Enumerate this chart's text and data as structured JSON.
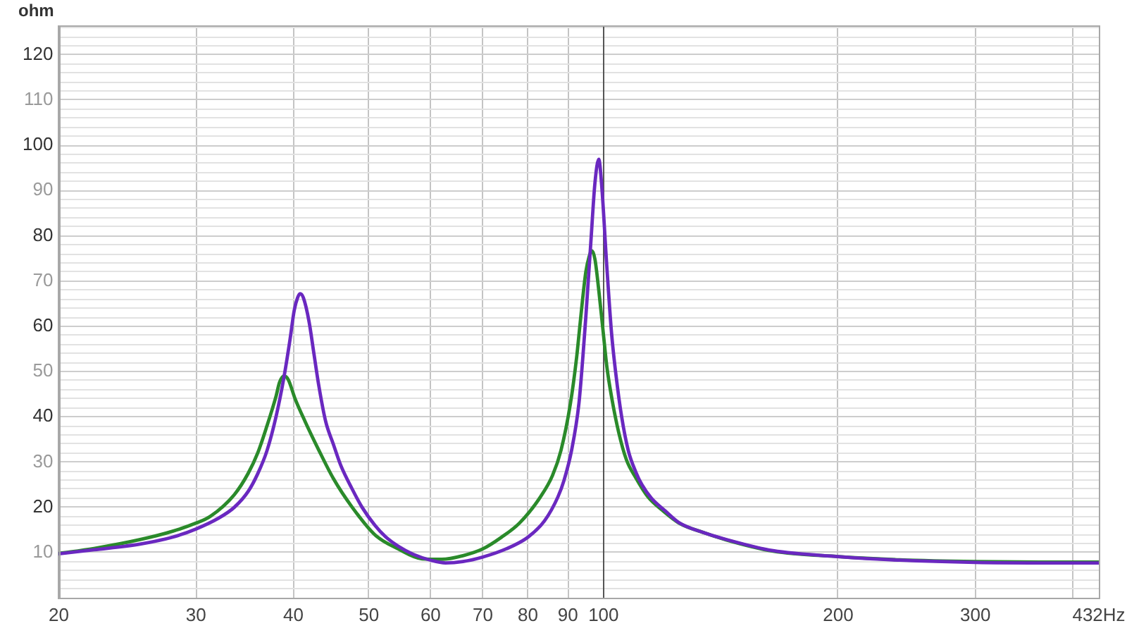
{
  "chart_data": {
    "type": "line",
    "ylabel": "ohm",
    "log": "x",
    "xlim": [
      20,
      432
    ],
    "xticks": [
      20,
      30,
      40,
      50,
      60,
      70,
      80,
      90,
      100,
      200,
      300,
      {
        "value": 400,
        "label": null
      },
      {
        "value": 432,
        "label": "432Hz"
      }
    ],
    "ylim": [
      0,
      126.5
    ],
    "yticks": [
      {
        "value": 2,
        "label": null
      },
      {
        "value": 4,
        "label": null
      },
      {
        "value": 6,
        "label": null
      },
      {
        "value": 8,
        "label": null
      },
      10,
      {
        "value": 12,
        "label": null
      },
      {
        "value": 14,
        "label": null
      },
      {
        "value": 16,
        "label": null
      },
      {
        "value": 18,
        "label": null
      },
      20,
      {
        "value": 22,
        "label": null
      },
      {
        "value": 24,
        "label": null
      },
      {
        "value": 26,
        "label": null
      },
      {
        "value": 28,
        "label": null
      },
      30,
      {
        "value": 32,
        "label": null
      },
      {
        "value": 34,
        "label": null
      },
      {
        "value": 36,
        "label": null
      },
      {
        "value": 38,
        "label": null
      },
      40,
      {
        "value": 42,
        "label": null
      },
      {
        "value": 44,
        "label": null
      },
      {
        "value": 46,
        "label": null
      },
      {
        "value": 48,
        "label": null
      },
      50,
      {
        "value": 52,
        "label": null
      },
      {
        "value": 54,
        "label": null
      },
      {
        "value": 56,
        "label": null
      },
      {
        "value": 58,
        "label": null
      },
      60,
      {
        "value": 62,
        "label": null
      },
      {
        "value": 64,
        "label": null
      },
      {
        "value": 66,
        "label": null
      },
      {
        "value": 68,
        "label": null
      },
      70,
      {
        "value": 72,
        "label": null
      },
      {
        "value": 74,
        "label": null
      },
      {
        "value": 76,
        "label": null
      },
      {
        "value": 78,
        "label": null
      },
      80,
      {
        "value": 82,
        "label": null
      },
      {
        "value": 84,
        "label": null
      },
      {
        "value": 86,
        "label": null
      },
      {
        "value": 88,
        "label": null
      },
      90,
      {
        "value": 92,
        "label": null
      },
      {
        "value": 94,
        "label": null
      },
      {
        "value": 96,
        "label": null
      },
      {
        "value": 98,
        "label": null
      },
      100,
      {
        "value": 102,
        "label": null
      },
      {
        "value": 104,
        "label": null
      },
      {
        "value": 106,
        "label": null
      },
      {
        "value": 108,
        "label": null
      },
      110,
      {
        "value": 112,
        "label": null
      },
      {
        "value": 114,
        "label": null
      },
      {
        "value": 116,
        "label": null
      },
      {
        "value": 118,
        "label": null
      },
      120,
      {
        "value": 122,
        "label": null
      },
      {
        "value": 124,
        "label": null
      },
      {
        "value": 126,
        "label": null
      }
    ],
    "grid": true,
    "legend": false,
    "marker": "none",
    "line_style": "solid",
    "ref_lines": [
      {
        "axis": "x",
        "value": 100,
        "color": "#555555"
      }
    ],
    "series": [
      {
        "color": "#6a28c0",
        "x": [
          20,
          22.2,
          25.5,
          28,
          30,
          32,
          33.6,
          35,
          36,
          37,
          38,
          38.9,
          39.6,
          40.1,
          40.5,
          40.8,
          41.2,
          41.9,
          42.5,
          43.1,
          44,
          45,
          46,
          47.5,
          49,
          50.9,
          52.5,
          54.5,
          57,
          60,
          62.7,
          66,
          70,
          75,
          80,
          84,
          87.4,
          89,
          91,
          93,
          94.1,
          94.9,
          96.3,
          97.5,
          98.6,
          99.5,
          100.9,
          102.4,
          103.7,
          105.5,
          107.6,
          110,
          112,
          115.2,
          120,
          125,
          135,
          143.6,
          165,
          200,
          240,
          300,
          363,
          432
        ],
        "values": [
          9.7,
          10.6,
          11.9,
          13.4,
          15.2,
          17.5,
          20,
          23.5,
          27.4,
          32.5,
          40,
          48.7,
          57,
          63.5,
          66.3,
          67.2,
          66.3,
          61,
          54,
          47.1,
          39,
          34,
          29.3,
          24.3,
          20,
          16,
          13.5,
          11.4,
          9.6,
          8.3,
          7.7,
          8,
          9,
          10.8,
          13.4,
          17,
          22.3,
          26,
          32.6,
          43,
          53.4,
          62,
          78.3,
          91.7,
          96.9,
          90.7,
          74.1,
          58.5,
          49.5,
          40,
          32.5,
          27.8,
          25,
          22,
          19.2,
          16.6,
          14.3,
          12.9,
          10.4,
          9.1,
          8.3,
          7.8,
          7.7,
          7.7
        ]
      },
      {
        "color": "#2a8a2a",
        "x": [
          20,
          22.2,
          25.5,
          28,
          30,
          31.3,
          33.6,
          35,
          36,
          37,
          38,
          38.4,
          38.9,
          39.4,
          40.2,
          41.4,
          43.1,
          45,
          47.5,
          50.9,
          54.5,
          58.5,
          62,
          66,
          70,
          74,
          78,
          83,
          86,
          88.2,
          90.7,
          92.4,
          93.3,
          94.9,
          95.8,
          96.6,
          97.5,
          98.6,
          100,
          101,
          102.5,
          104.6,
          107,
          110,
          114,
          119.2,
          125,
          135,
          143.6,
          165,
          200,
          240,
          300,
          363,
          432
        ],
        "values": [
          9.8,
          10.9,
          12.9,
          14.7,
          16.5,
          18,
          22.8,
          27.5,
          32,
          38,
          44.5,
          47.6,
          49,
          48.2,
          44,
          39,
          32.7,
          26.4,
          20.2,
          13.9,
          10.8,
          8.6,
          8.5,
          9.3,
          10.8,
          13.4,
          16.5,
          22.3,
          27,
          32.6,
          43,
          53.4,
          60.5,
          72,
          75.3,
          76.7,
          74.8,
          68,
          58,
          51,
          44,
          36.5,
          30.5,
          26.5,
          22.3,
          19.2,
          16.5,
          14.3,
          12.8,
          10.3,
          9.1,
          8.4,
          8,
          7.9,
          7.9
        ]
      }
    ]
  }
}
